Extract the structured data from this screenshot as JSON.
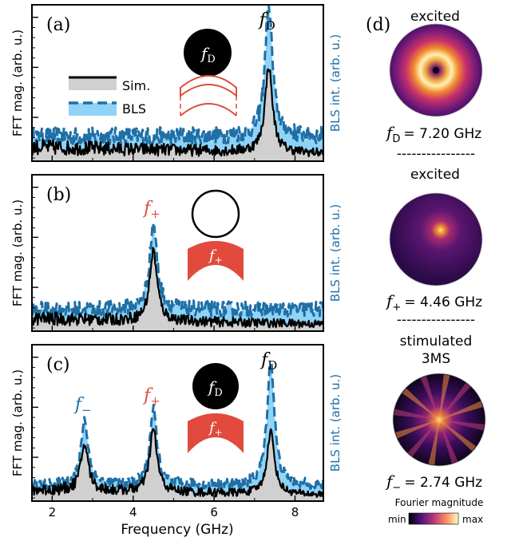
{
  "chart_data": {
    "type": "line",
    "xlabel": "Frequency (GHz)",
    "xlim": [
      1.5,
      8.7
    ],
    "xticks": [
      "2",
      "4",
      "6",
      "8"
    ],
    "ylabel_left": "FFT mag. (arb. u.)",
    "ylabel_right": "BLS int. (arb. u.)",
    "legend": {
      "sim": "Sim.",
      "bls": "BLS"
    },
    "colors": {
      "sim_line": "#000000",
      "sim_fill": "#d0d0d0",
      "bls_line": "#1f6fa6",
      "bls_fill": "#8fd3f7",
      "red": "#e14a3c"
    },
    "panels": [
      {
        "label": "(a)",
        "peak_labels": [
          {
            "base": "f",
            "sub": "D",
            "color": "#000000",
            "x": 7.35
          }
        ],
        "bls_peaks": [
          {
            "x": 7.35,
            "height": 0.85
          }
        ],
        "sim_peaks": [
          {
            "x": 7.35,
            "height": 0.55
          }
        ],
        "bls_base": 0.16,
        "sim_base": 0.09
      },
      {
        "label": "(b)",
        "peak_labels": [
          {
            "base": "f",
            "sub": "+",
            "color": "#e14a3c",
            "x": 4.5
          }
        ],
        "bls_peaks": [
          {
            "x": 4.5,
            "height": 0.55
          }
        ],
        "sim_peaks": [
          {
            "x": 4.5,
            "height": 0.45
          }
        ],
        "bls_base": 0.14,
        "sim_base": 0.08
      },
      {
        "label": "(c)",
        "peak_labels": [
          {
            "base": "f",
            "sub": "−",
            "color": "#1f6fa6",
            "x": 2.8
          },
          {
            "base": "f",
            "sub": "+",
            "color": "#e14a3c",
            "x": 4.5
          },
          {
            "base": "f",
            "sub": "D",
            "color": "#000000",
            "x": 7.4
          }
        ],
        "bls_peaks": [
          {
            "x": 2.8,
            "height": 0.42
          },
          {
            "x": 4.5,
            "height": 0.48
          },
          {
            "x": 7.4,
            "height": 0.8
          }
        ],
        "sim_peaks": [
          {
            "x": 2.8,
            "height": 0.3
          },
          {
            "x": 4.5,
            "height": 0.4
          },
          {
            "x": 7.4,
            "height": 0.4
          }
        ],
        "bls_base": 0.1,
        "sim_base": 0.07
      }
    ]
  },
  "inset_labels": {
    "fD": "D",
    "fplus": "+",
    "f": "f"
  },
  "side_panel": {
    "label": "(d)",
    "maps": [
      {
        "title": [
          "excited"
        ],
        "freq": "= 7.20 GHz",
        "sub": "D"
      },
      {
        "title": [
          "excited"
        ],
        "freq": "= 4.46 GHz",
        "sub": "+"
      },
      {
        "title": [
          "stimulated",
          "3MS"
        ],
        "freq": "= 2.74 GHz",
        "sub": "−"
      }
    ],
    "separator": "----------------",
    "colorbar": {
      "title": "Fourier magnitude",
      "min": "min",
      "max": "max"
    }
  }
}
